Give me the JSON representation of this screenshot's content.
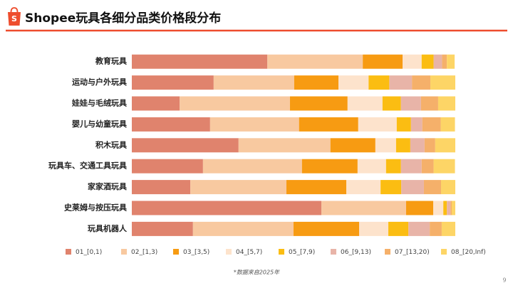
{
  "chart_data": {
    "type": "bar",
    "orientation": "horizontal",
    "stacked": true,
    "title": "Shopee玩具各细分品类价格段分布",
    "footnote": "*数据来自2025年",
    "page_number": "9",
    "categories": [
      "教育玩具",
      "运动与户外玩具",
      "娃娃与毛绒玩具",
      "婴儿与幼童玩具",
      "积木玩具",
      "玩具车、交通工具玩具",
      "家家酒玩具",
      "史莱姆与按压玩具",
      "玩具机器人"
    ],
    "xlim": [
      0,
      100
    ],
    "series": [
      {
        "name": "01_[0,1)",
        "color": "#e0836d",
        "values": [
          41.9,
          25.3,
          14.8,
          24.2,
          33.0,
          22.0,
          18.1,
          58.6,
          18.9
        ]
      },
      {
        "name": "02_[1,3)",
        "color": "#f8c9a0",
        "values": [
          29.5,
          24.9,
          34.1,
          27.5,
          28.4,
          30.6,
          29.7,
          26.2,
          31.1
        ]
      },
      {
        "name": "03_[3,5)",
        "color": "#f79b12",
        "values": [
          12.3,
          13.7,
          17.8,
          18.3,
          13.9,
          17.2,
          18.5,
          8.4,
          20.3
        ]
      },
      {
        "name": "04_[5,7)",
        "color": "#fde3cc",
        "values": [
          5.9,
          9.3,
          10.8,
          11.9,
          6.4,
          8.8,
          10.6,
          3.1,
          9.0
        ]
      },
      {
        "name": "05_[7,9)",
        "color": "#fbbd12",
        "values": [
          3.7,
          6.4,
          5.7,
          4.4,
          4.4,
          4.6,
          6.4,
          1.1,
          6.2
        ]
      },
      {
        "name": "06_[9,13)",
        "color": "#e8b4a8",
        "values": [
          2.6,
          7.0,
          6.2,
          3.5,
          4.4,
          6.4,
          7.0,
          1.1,
          6.6
        ]
      },
      {
        "name": "07_[13,20)",
        "color": "#f5b06a",
        "values": [
          1.5,
          5.7,
          5.3,
          5.7,
          3.3,
          3.7,
          5.3,
          0.4,
          3.7
        ]
      },
      {
        "name": "08_[20,Inf)",
        "color": "#fdd566",
        "values": [
          2.4,
          7.7,
          5.3,
          4.4,
          6.2,
          6.6,
          4.4,
          1.1,
          4.2
        ]
      }
    ]
  }
}
